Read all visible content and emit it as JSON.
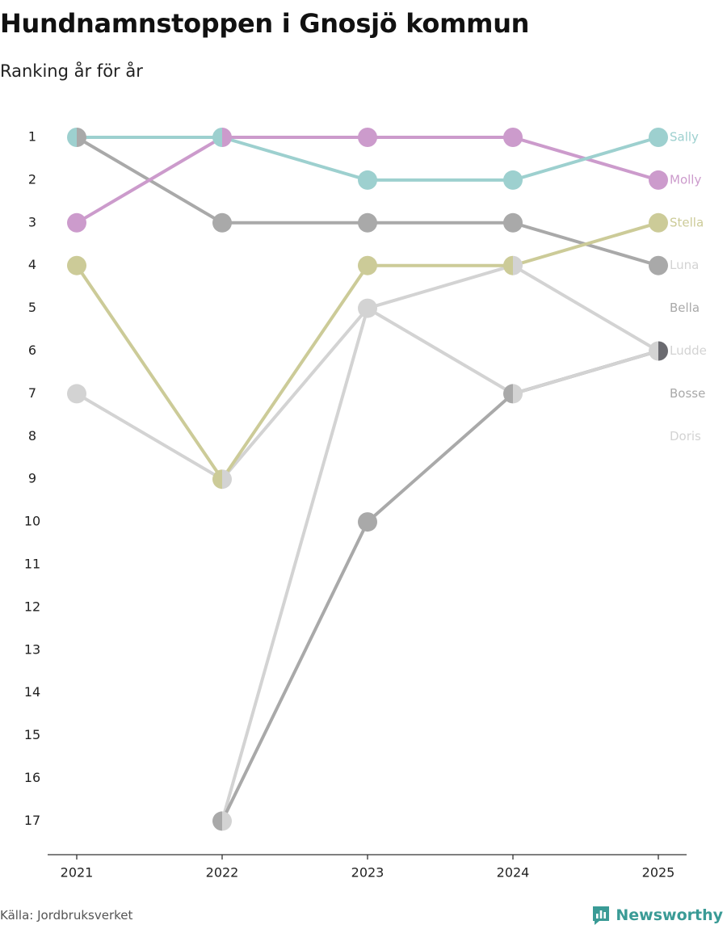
{
  "title": "Hundnamnstoppen i Gnosjö kommun",
  "subtitle": "Ranking år för år",
  "source": "Källa: Jordbruksverket",
  "brand": "Newsworthy",
  "brand_icon": "newsworthy-logo-icon",
  "chart_data": {
    "type": "line",
    "chart_kind": "bump",
    "title": "Hundnamnstoppen i Gnosjö kommun",
    "subtitle": "Ranking år för år",
    "x": [
      "2021",
      "2022",
      "2023",
      "2024",
      "2025"
    ],
    "y_ticks": [
      1,
      2,
      3,
      4,
      5,
      6,
      7,
      8,
      9,
      10,
      11,
      12,
      13,
      14,
      15,
      16,
      17
    ],
    "ylim": [
      1,
      17
    ],
    "y_reversed": true,
    "grid": false,
    "series": [
      {
        "name": "Sally",
        "color": "#9dd0cf",
        "values": [
          1,
          1,
          2,
          2,
          1
        ]
      },
      {
        "name": "Molly",
        "color": "#cc9bcc",
        "values": [
          3,
          1,
          1,
          1,
          2
        ]
      },
      {
        "name": "Stella",
        "color": "#cccb98",
        "values": [
          4,
          9,
          4,
          4,
          3
        ]
      },
      {
        "name": "Luna",
        "color": "#a9a9a9",
        "values": [
          1,
          3,
          3,
          3,
          4
        ]
      },
      {
        "name": "Bella",
        "color": "#a9a9a9",
        "values": [
          null,
          17,
          10,
          7,
          null
        ]
      },
      {
        "name": "Ludde",
        "color": "#d3d3d3",
        "values": [
          7,
          9,
          5,
          7,
          6
        ]
      },
      {
        "name": "Bosse",
        "color": "#6b6b70",
        "values": [
          null,
          null,
          null,
          7,
          6
        ]
      },
      {
        "name": "Doris",
        "color": "#d3d3d3",
        "values": [
          null,
          17,
          5,
          4,
          6
        ]
      }
    ],
    "end_labels": [
      {
        "text": "Sally",
        "rank": 1,
        "color": "#9dd0cf"
      },
      {
        "text": "Molly",
        "rank": 2,
        "color": "#cc9bcc"
      },
      {
        "text": "Stella",
        "rank": 3,
        "color": "#cccb98"
      },
      {
        "text": "Luna",
        "rank": 4,
        "color": "#d3d3d3"
      },
      {
        "text": "Bella",
        "rank": 5,
        "color": "#a9a9a9"
      },
      {
        "text": "Ludde",
        "rank": 6,
        "color": "#d3d3d3"
      },
      {
        "text": "Bosse",
        "rank": 7,
        "color": "#a9a9a9"
      },
      {
        "text": "Doris",
        "rank": 8,
        "color": "#d3d3d3"
      }
    ]
  }
}
